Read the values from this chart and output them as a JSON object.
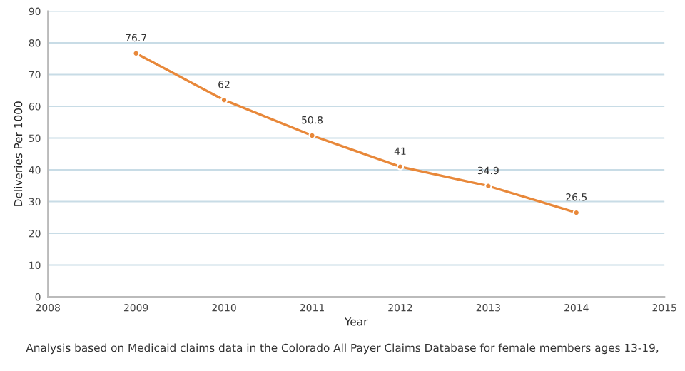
{
  "chart_data": {
    "type": "line",
    "xlabel": "Year",
    "ylabel": "Deliveries Per 1000",
    "x": [
      2009,
      2010,
      2011,
      2012,
      2013,
      2014
    ],
    "series": [
      {
        "color": "#e8883a",
        "values": [
          76.7,
          62,
          50.8,
          41,
          34.9,
          26.5
        ]
      }
    ],
    "xlim": [
      2008,
      2015
    ],
    "xticks": [
      2008,
      2009,
      2010,
      2011,
      2012,
      2013,
      2014,
      2015
    ],
    "ylim": [
      0,
      90
    ],
    "yticks": [
      0,
      10,
      20,
      30,
      40,
      50,
      60,
      70,
      80,
      90
    ],
    "grid": "y",
    "marker": "circle",
    "line_style": "solid",
    "data_labels": true,
    "annotations": [
      "Analysis based on Medicaid claims data in the Colorado All Payer Claims Database for female members ages 13-19,"
    ]
  }
}
